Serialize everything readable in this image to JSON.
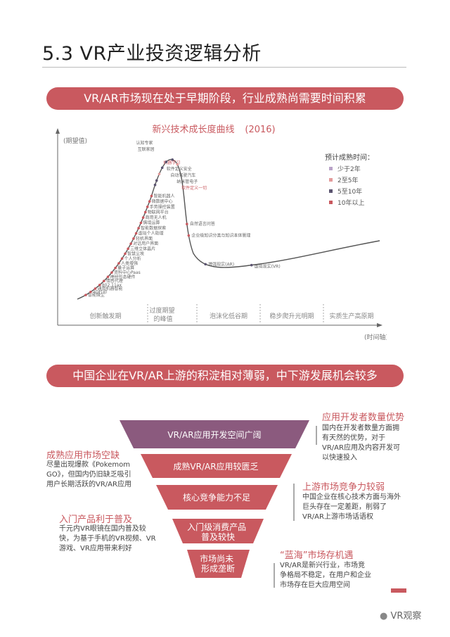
{
  "page": {
    "title": "5.3 VR产业投资逻辑分析",
    "banner1": "VR/AR市场现在处于早期阶段，行业成熟尚需要时间积累",
    "banner2": "中国企业在VR/AR上游的积淀相对薄弱，中下游发展机会较多",
    "watermark": "VR观察"
  },
  "chart_data": {
    "type": "line",
    "title": "新兴技术成长度曲线",
    "subtitle": "(2016)",
    "ylabel": "(期望值)",
    "xlabel": "(时间轴)",
    "phases": [
      "创新触发期",
      "过度期望的峰值",
      "泡沫化低谷期",
      "稳步爬升光明期",
      "实质生产高原期"
    ],
    "legend_title": "预计成熟时间：",
    "legend": [
      {
        "label": "少于2年",
        "color": "#b9a3c8"
      },
      {
        "label": "2至5年",
        "color": "#e39b9b"
      },
      {
        "label": "5至10年",
        "color": "#5b5470"
      },
      {
        "label": "10年以上",
        "color": "#c9595f"
      }
    ],
    "points_rising": [
      "智能微尘",
      "4D打印",
      "通用机器智能",
      "802.11ax",
      "情感代理",
      "神经形态硬件",
      "资料中心Paas",
      "量子运算",
      "人类增强",
      "个人分析",
      "智慧尘埃",
      "三维立体晶片",
      "对话用户界面",
      "轻机界面",
      "虚拟个人助理",
      "智能数据探索",
      "情境运算",
      "商用无人机",
      "物联网平台",
      "手势操控装置",
      "微数据中心",
      "智能机器人"
    ],
    "points_peak": [
      "认知专家",
      "互联家居",
      "机器学习",
      "软件定义安全",
      "自动驾驶汽车",
      "纳米管电子",
      "软件定义一切"
    ],
    "points_trough": [
      "自然语言问答",
      "企业级知识分类与知识本体管理",
      "增强现实(AR)"
    ],
    "points_slope": [
      "虚拟现实(VR)"
    ]
  },
  "funnel": {
    "levels": [
      "VR/AR应用开发空间广阔",
      "成熟VR/AR应用较匮乏",
      "核心竞争能力不足",
      "入门级消费产品\n普及较快",
      "市场尚未\n形成垄断"
    ]
  },
  "annotations": {
    "right1": {
      "heading": "应用开发者数量优势",
      "body": "国内在开发者数量方面拥有天然的优势，对于VR/AR应用及内容开发可以快速投入"
    },
    "left1": {
      "heading": "成熟应用市场空缺",
      "body": "尽量出现爆款《Pokemom GO》，但国内仍旧缺乏吸引用户长期活跃的VR/AR应用"
    },
    "right2": {
      "heading": "上游市场竞争力较弱",
      "body": "中国企业在核心技术方面与海外巨头存在一定差距，削弱了VR/AR上游市场话语权"
    },
    "left2": {
      "heading": "入门产品利于普及",
      "body": "千元内VR眼镜在国内普及较快，为基于手机的VR视频、VR游戏、VR应用带来利好"
    },
    "right3": {
      "heading": "“蓝海”市场存机遇",
      "body": "VR/AR是新兴行业，市场竞争格局不稳定，在用户和企业市场存在巨大应用空间"
    }
  }
}
